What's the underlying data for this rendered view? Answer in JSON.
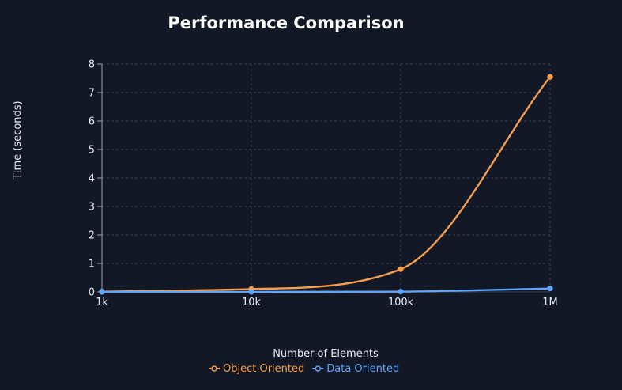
{
  "chart_data": {
    "type": "line",
    "title": "Performance Comparison",
    "xlabel": "Number of Elements",
    "ylabel": "Time (seconds)",
    "x_scale": "log",
    "categories": [
      "1k",
      "10k",
      "100k",
      "1M"
    ],
    "x": [
      1000,
      10000,
      100000,
      1000000
    ],
    "ylim": [
      0,
      8
    ],
    "yticks": [
      "0",
      "1",
      "2",
      "3",
      "4",
      "5",
      "6",
      "7",
      "8"
    ],
    "grid": true,
    "legend": "bottom-center",
    "series": [
      {
        "name": "Object Oriented",
        "color": "#f59e4f",
        "values": [
          0.01,
          0.1,
          0.8,
          7.55
        ]
      },
      {
        "name": "Data Oriented",
        "color": "#60a5fa",
        "values": [
          0.0,
          0.0,
          0.01,
          0.12
        ]
      }
    ]
  },
  "colors": {
    "background": "#121826",
    "grid": "#3a4150",
    "text": "#e8ebf0"
  }
}
